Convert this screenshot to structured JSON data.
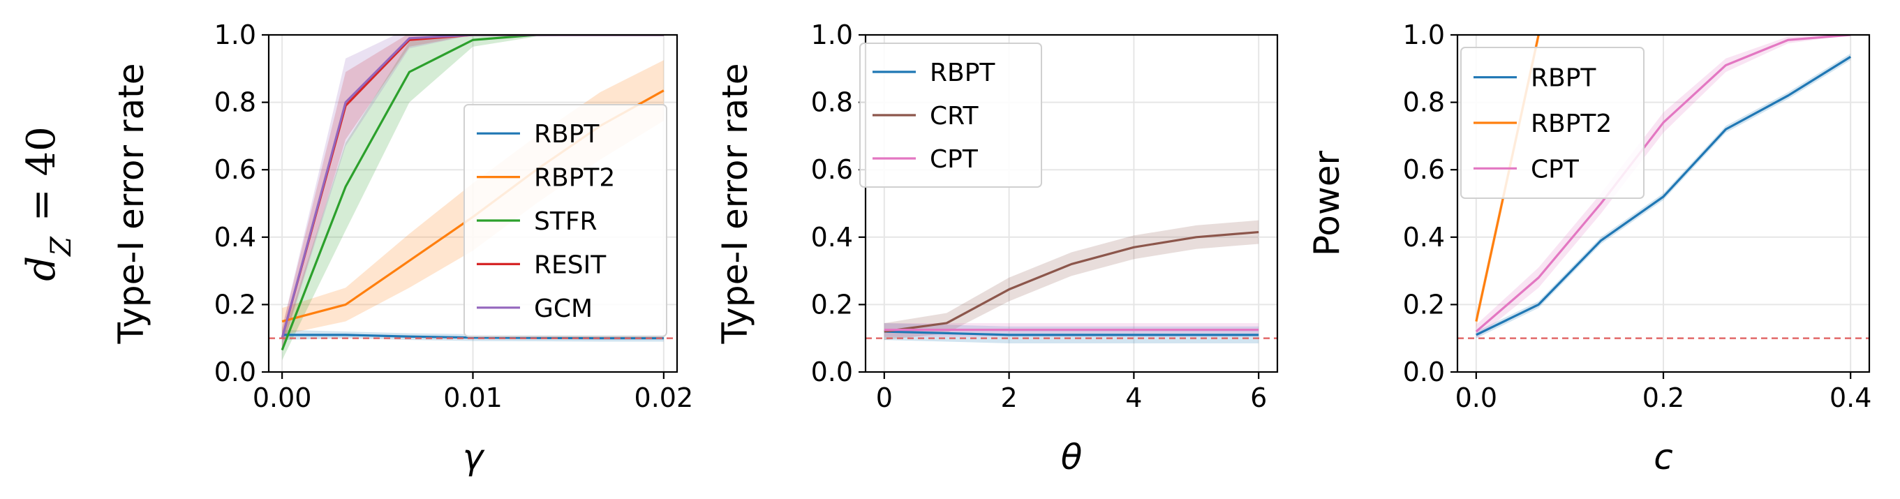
{
  "row_label": "d_Z = 40",
  "row_label_parts": {
    "base": "d",
    "sub": "Z",
    "rest": " = 40"
  },
  "colors": {
    "RBPT": "#1f77b4",
    "RBPT2": "#ff7f0e",
    "STFR": "#2ca02c",
    "RESIT": "#d62728",
    "GCM": "#9467bd",
    "CRT": "#8c564b",
    "CPT": "#e377c2",
    "reference_line": "#e06060"
  },
  "chart_data": [
    {
      "type": "line",
      "xlabel": "γ",
      "ylabel": "Type-I error rate",
      "xlim": [
        -0.0007,
        0.0207
      ],
      "ylim": [
        0,
        1
      ],
      "xticks": [
        0,
        0.01,
        0.02
      ],
      "xtick_labels": [
        "0.00",
        "0.01",
        "0.02"
      ],
      "yticks": [
        0,
        0.2,
        0.4,
        0.6,
        0.8,
        1.0
      ],
      "ytick_labels": [
        "0.0",
        "0.2",
        "0.4",
        "0.6",
        "0.8",
        "1.0"
      ],
      "grid": true,
      "legend": "center-right",
      "reference_line": 0.1,
      "x": [
        0,
        0.00333,
        0.00667,
        0.01,
        0.01333,
        0.01667,
        0.02
      ],
      "series": [
        {
          "name": "RBPT",
          "values": [
            0.11,
            0.11,
            0.105,
            0.102,
            0.101,
            0.1,
            0.1
          ],
          "band": [
            0.015,
            0.01,
            0.01,
            0.01,
            0.01,
            0.01,
            0.01
          ]
        },
        {
          "name": "RBPT2",
          "values": [
            0.15,
            0.2,
            0.33,
            0.46,
            0.6,
            0.73,
            0.835
          ],
          "band": [
            0.04,
            0.05,
            0.08,
            0.1,
            0.1,
            0.1,
            0.09
          ]
        },
        {
          "name": "STFR",
          "values": [
            0.065,
            0.55,
            0.89,
            0.985,
            1.0,
            1.0,
            1.0
          ],
          "band": [
            0.03,
            0.13,
            0.09,
            0.02,
            0.005,
            0,
            0
          ]
        },
        {
          "name": "RESIT",
          "values": [
            0.1,
            0.79,
            0.985,
            1.0,
            1.0,
            1.0,
            1.0
          ],
          "band": [
            0.03,
            0.1,
            0.02,
            0,
            0,
            0,
            0
          ]
        },
        {
          "name": "GCM",
          "values": [
            0.1,
            0.8,
            0.99,
            1.0,
            1.0,
            1.0,
            1.0
          ],
          "band": [
            0.03,
            0.13,
            0.03,
            0,
            0,
            0,
            0
          ]
        }
      ]
    },
    {
      "type": "line",
      "xlabel": "θ",
      "ylabel": "Type-I error rate",
      "xlim": [
        -0.3,
        6.3
      ],
      "ylim": [
        0,
        1
      ],
      "xticks": [
        0,
        2,
        4,
        6
      ],
      "xtick_labels": [
        "0",
        "2",
        "4",
        "6"
      ],
      "yticks": [
        0,
        0.2,
        0.4,
        0.6,
        0.8,
        1.0
      ],
      "ytick_labels": [
        "0.0",
        "0.2",
        "0.4",
        "0.6",
        "0.8",
        "1.0"
      ],
      "grid": true,
      "legend": "top-left",
      "reference_line": 0.1,
      "x": [
        0,
        1,
        2,
        3,
        4,
        5,
        6
      ],
      "series": [
        {
          "name": "RBPT",
          "values": [
            0.12,
            0.115,
            0.11,
            0.11,
            0.11,
            0.11,
            0.11
          ],
          "band": [
            0.025,
            0.025,
            0.025,
            0.025,
            0.025,
            0.025,
            0.025
          ]
        },
        {
          "name": "CRT",
          "values": [
            0.12,
            0.145,
            0.245,
            0.32,
            0.37,
            0.4,
            0.415
          ],
          "band": [
            0.025,
            0.03,
            0.035,
            0.035,
            0.035,
            0.035,
            0.035
          ]
        },
        {
          "name": "CPT",
          "values": [
            0.125,
            0.125,
            0.125,
            0.125,
            0.125,
            0.125,
            0.125
          ],
          "band": [
            0.02,
            0.02,
            0.02,
            0.02,
            0.02,
            0.02,
            0.02
          ]
        }
      ]
    },
    {
      "type": "line",
      "xlabel": "c",
      "ylabel": "Power",
      "xlim": [
        -0.02,
        0.42
      ],
      "ylim": [
        0,
        1
      ],
      "xticks": [
        0,
        0.2,
        0.4
      ],
      "xtick_labels": [
        "0.0",
        "0.2",
        "0.4"
      ],
      "yticks": [
        0,
        0.2,
        0.4,
        0.6,
        0.8,
        1.0
      ],
      "ytick_labels": [
        "0.0",
        "0.2",
        "0.4",
        "0.6",
        "0.8",
        "1.0"
      ],
      "grid": true,
      "legend": "top-left",
      "reference_line": 0.1,
      "series": [
        {
          "name": "RBPT",
          "x": [
            0,
            0.0667,
            0.1333,
            0.2,
            0.2667,
            0.3333,
            0.4
          ],
          "values": [
            0.11,
            0.2,
            0.39,
            0.52,
            0.72,
            0.82,
            0.935
          ],
          "band": [
            0.01,
            0.01,
            0.01,
            0.01,
            0.01,
            0.01,
            0.01
          ]
        },
        {
          "name": "RBPT2",
          "x": [
            0,
            0.0667
          ],
          "values": [
            0.15,
            1.0
          ],
          "band": [
            0.02,
            0.02
          ]
        },
        {
          "name": "CPT",
          "x": [
            0,
            0.0667,
            0.1333,
            0.2,
            0.2667,
            0.3333,
            0.4
          ],
          "values": [
            0.12,
            0.28,
            0.5,
            0.74,
            0.91,
            0.985,
            1.0
          ],
          "band": [
            0.02,
            0.03,
            0.03,
            0.03,
            0.02,
            0.01,
            0
          ]
        }
      ]
    }
  ]
}
